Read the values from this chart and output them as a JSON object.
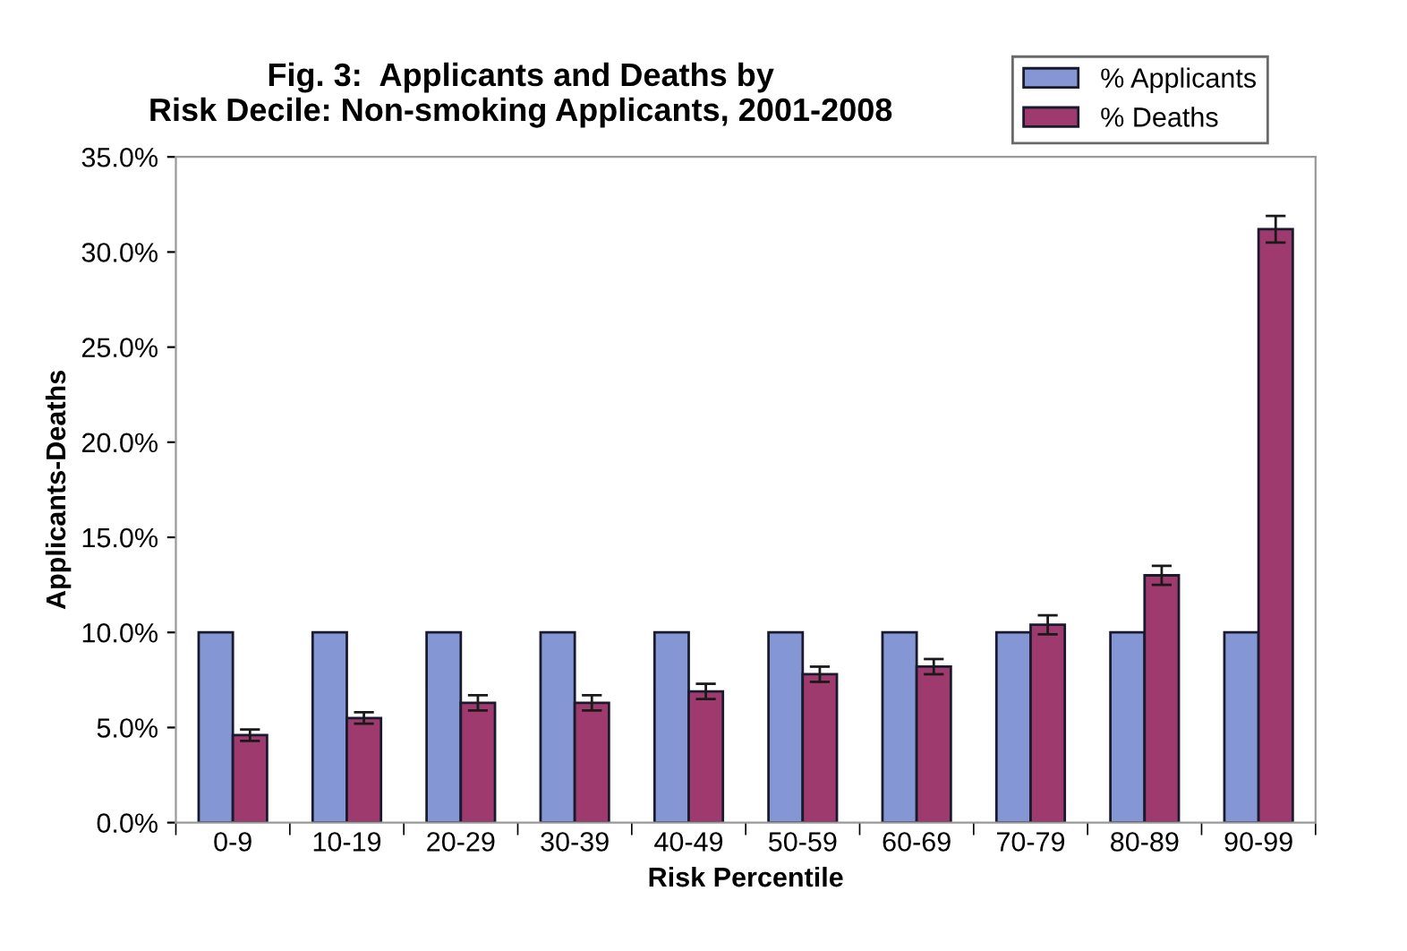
{
  "chart_data": {
    "type": "bar",
    "title": "Fig. 3:  Applicants and Deaths by\nRisk Decile: Non-smoking Applicants, 2001-2008",
    "xlabel": "Risk Percentile",
    "ylabel": "Applicants-Deaths",
    "categories": [
      "0-9",
      "10-19",
      "20-29",
      "30-39",
      "40-49",
      "50-59",
      "60-69",
      "70-79",
      "80-89",
      "90-99"
    ],
    "series": [
      {
        "name": "% Applicants",
        "color": "#8497d4",
        "values": [
          10,
          10,
          10,
          10,
          10,
          10,
          10,
          10,
          10,
          10
        ]
      },
      {
        "name": "% Deaths",
        "color": "#9e3a6e",
        "values": [
          4.6,
          5.5,
          6.3,
          6.3,
          6.9,
          7.8,
          8.2,
          10.4,
          13.0,
          31.2
        ],
        "errors": [
          0.3,
          0.3,
          0.4,
          0.4,
          0.4,
          0.4,
          0.4,
          0.5,
          0.5,
          0.7
        ]
      }
    ],
    "ylim": [
      0,
      35
    ],
    "yticks": [
      {
        "value": 0,
        "label": "0.0%"
      },
      {
        "value": 5,
        "label": "5.0%"
      },
      {
        "value": 10,
        "label": "10.0%"
      },
      {
        "value": 15,
        "label": "15.0%"
      },
      {
        "value": 20,
        "label": "20.0%"
      },
      {
        "value": 25,
        "label": "25.0%"
      },
      {
        "value": 30,
        "label": "30.0%"
      },
      {
        "value": 35,
        "label": "35.0%"
      }
    ],
    "grid": false,
    "legend": "top right"
  }
}
